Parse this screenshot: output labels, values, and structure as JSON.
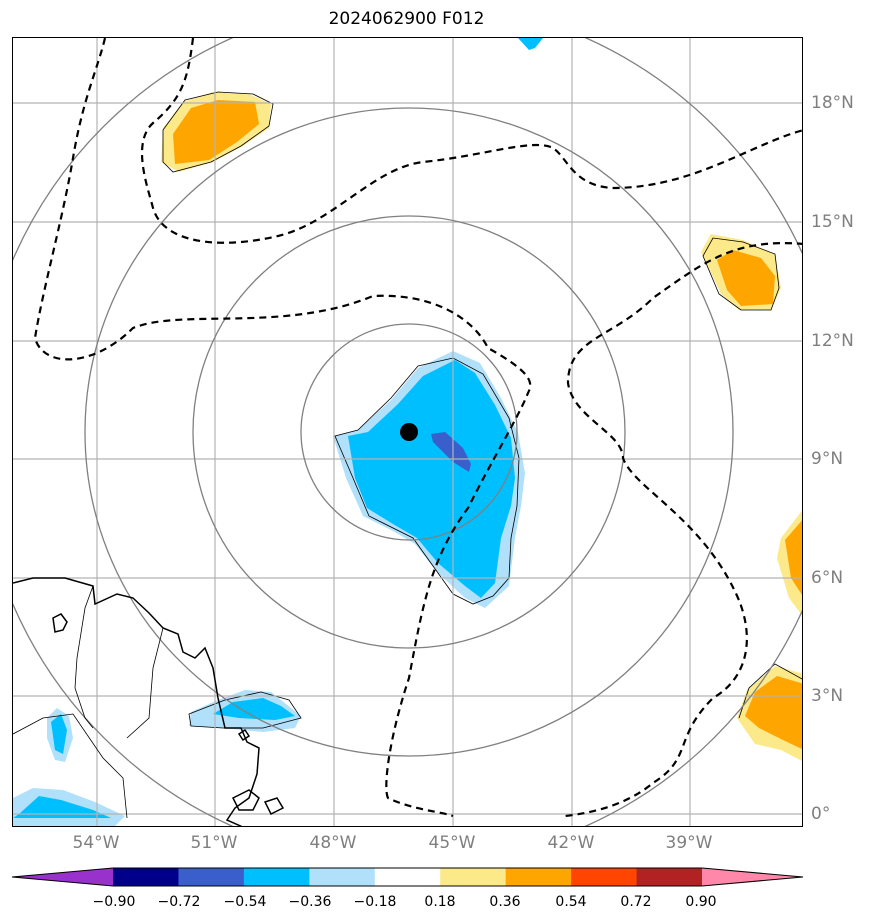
{
  "title": "2024062900 F012",
  "colors": {
    "grid": "#b3b3b3",
    "range_ring": "#808080",
    "coast": "#000000",
    "contour_dashed": "#000000",
    "center_marker": "#000000",
    "shade_very_light_blue": "#b0e0fa",
    "shade_light_blue": "#00bfff",
    "shade_mid_blue": "#3a5fcd",
    "shade_light_yellow": "#fce98a",
    "shade_orange": "#ffa500"
  },
  "lon_ticks": [
    "54°W",
    "51°W",
    "48°W",
    "45°W",
    "42°W",
    "39°W"
  ],
  "lat_ticks": [
    "18°N",
    "15°N",
    "12°N",
    "9°N",
    "6°N",
    "3°N",
    "0°"
  ],
  "colorbar": {
    "ticks": [
      "−0.90",
      "−0.72",
      "−0.54",
      "−0.36",
      "−0.18",
      "0.18",
      "0.36",
      "0.54",
      "0.72",
      "0.90"
    ],
    "colors": [
      "#9932cc",
      "#00008b",
      "#3a5fcd",
      "#00bfff",
      "#b0e0fa",
      "#ffffff",
      "#fce98a",
      "#ffa500",
      "#ff4500",
      "#b22222",
      "#ff88aa"
    ]
  },
  "storm_center": {
    "lon": -46.1,
    "lat": 9.7
  }
}
